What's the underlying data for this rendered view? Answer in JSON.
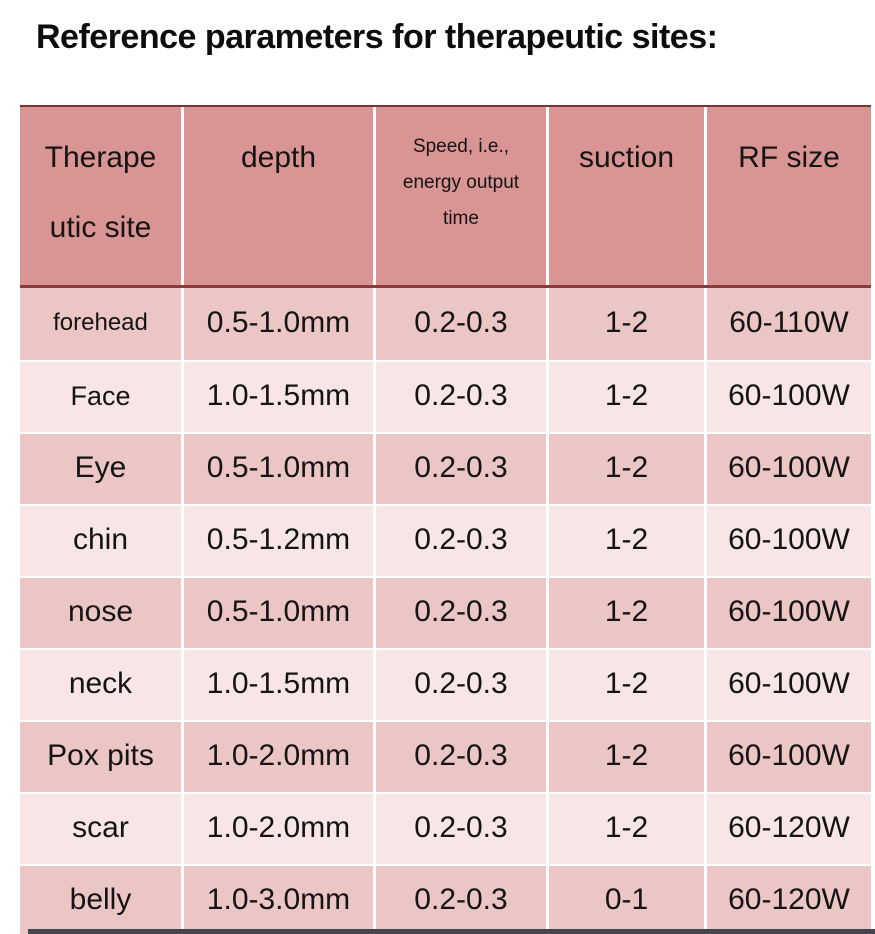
{
  "title": "Reference parameters for therapeutic sites:",
  "table": {
    "columns": [
      {
        "name": "therapeutic-site",
        "lines": [
          "Therape",
          "utic site"
        ]
      },
      {
        "name": "depth",
        "lines": [
          "depth"
        ]
      },
      {
        "name": "speed",
        "lines": [
          "Speed, i.e.,",
          "energy output",
          "time"
        ]
      },
      {
        "name": "suction",
        "lines": [
          "suction"
        ]
      },
      {
        "name": "rf-size",
        "lines": [
          "RF size"
        ]
      }
    ],
    "rows": [
      {
        "site": "forehead",
        "depth": "0.5-1.0mm",
        "speed": "0.2-0.3",
        "suction": "1-2",
        "rf": "60-110W"
      },
      {
        "site": "Face",
        "depth": "1.0-1.5mm",
        "speed": "0.2-0.3",
        "suction": "1-2",
        "rf": "60-100W"
      },
      {
        "site": "Eye",
        "depth": "0.5-1.0mm",
        "speed": "0.2-0.3",
        "suction": "1-2",
        "rf": "60-100W"
      },
      {
        "site": "chin",
        "depth": "0.5-1.2mm",
        "speed": "0.2-0.3",
        "suction": "1-2",
        "rf": "60-100W"
      },
      {
        "site": "nose",
        "depth": "0.5-1.0mm",
        "speed": "0.2-0.3",
        "suction": "1-2",
        "rf": "60-100W"
      },
      {
        "site": "neck",
        "depth": "1.0-1.5mm",
        "speed": "0.2-0.3",
        "suction": "1-2",
        "rf": "60-100W"
      },
      {
        "site": "Pox pits",
        "depth": "1.0-2.0mm",
        "speed": "0.2-0.3",
        "suction": "1-2",
        "rf": "60-100W"
      },
      {
        "site": "scar",
        "depth": "1.0-2.0mm",
        "speed": "0.2-0.3",
        "suction": "1-2",
        "rf": "60-120W"
      },
      {
        "site": "belly",
        "depth": "1.0-3.0mm",
        "speed": "0.2-0.3",
        "suction": "0-1",
        "rf": "60-120W"
      }
    ]
  },
  "colors": {
    "header_bg": "#d99494",
    "row_dark": "#ecc5c5",
    "row_light": "#f8e5e5",
    "grid_line": "#ffffff",
    "table_top_border": "#7b3434",
    "header_bottom_border": "#8a3a3a",
    "text_color": "#141414",
    "bottom_strip": "#45454d",
    "page_bg": "#ffffff"
  }
}
